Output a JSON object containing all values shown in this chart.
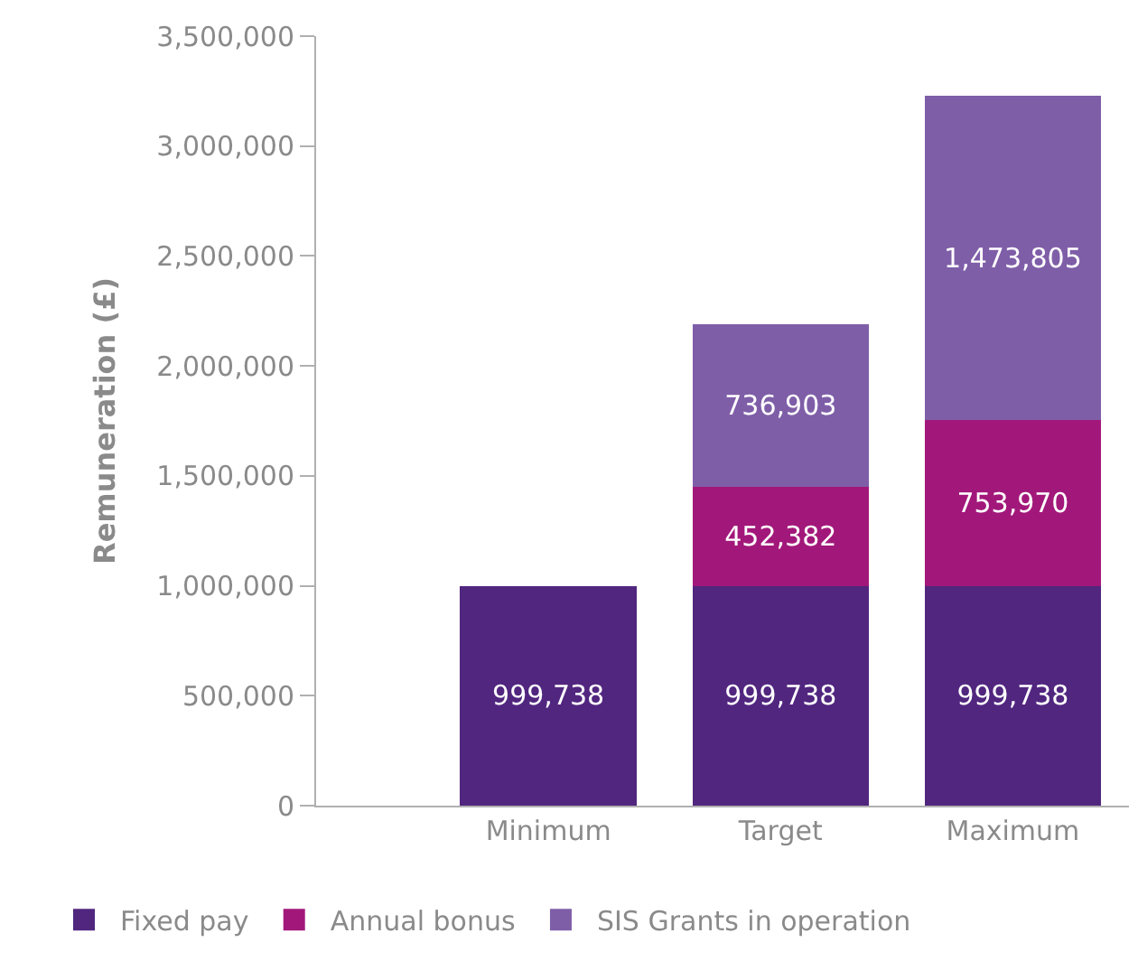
{
  "chart_data": {
    "type": "bar",
    "stacked": true,
    "ylabel": "Remuneration (£)",
    "categories": [
      "Minimum",
      "Target",
      "Maximum"
    ],
    "series": [
      {
        "name": "Fixed pay",
        "color": "#51267f",
        "values": [
          999738,
          999738,
          999738
        ],
        "value_labels": [
          "999,738",
          "999,738",
          "999,738"
        ]
      },
      {
        "name": "Annual bonus",
        "color": "#a2187a",
        "values": [
          null,
          452382,
          753970
        ],
        "value_labels": [
          null,
          "452,382",
          "753,970"
        ]
      },
      {
        "name": "SIS Grants in operation",
        "color": "#7f5ea8",
        "values": [
          null,
          736903,
          1473805
        ],
        "value_labels": [
          null,
          "736,903",
          "1,473,805"
        ]
      }
    ],
    "ylim": [
      0,
      3500000
    ],
    "yticks": [
      {
        "value": 0,
        "label": "0"
      },
      {
        "value": 500000,
        "label": "500,000"
      },
      {
        "value": 1000000,
        "label": "1,000,000"
      },
      {
        "value": 1500000,
        "label": "1,500,000"
      },
      {
        "value": 2000000,
        "label": "2,000,000"
      },
      {
        "value": 2500000,
        "label": "2,500,000"
      },
      {
        "value": 3000000,
        "label": "3,000,000"
      },
      {
        "value": 3500000,
        "label": "3,500,000"
      }
    ],
    "grid": false,
    "legend": "bottom"
  }
}
